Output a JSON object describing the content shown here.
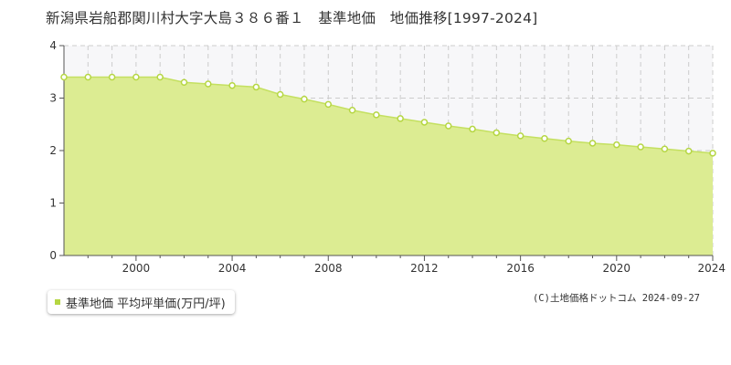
{
  "title": "新潟県岩船郡関川村大字大島３８６番１　基準地価　地価推移[1997-2024]",
  "legend": {
    "label": "基準地価 平均坪単価(万円/坪)"
  },
  "copyright": "(C)土地価格ドットコム 2024-09-27",
  "colors": {
    "area_fill": "#dcec92",
    "line": "#c4e060",
    "marker_stroke": "#b5d642",
    "marker_fill": "#ffffff",
    "grid": "#cccccc",
    "forecast_band": "#f7f7f9"
  },
  "chart_data": {
    "type": "area",
    "title": "",
    "xlabel": "",
    "ylabel": "",
    "xlim": [
      1997,
      2024
    ],
    "ylim": [
      0,
      4
    ],
    "xticks": [
      2000,
      2004,
      2008,
      2012,
      2016,
      2020,
      2024
    ],
    "yticks": [
      0,
      1,
      2,
      3,
      4
    ],
    "grid": true,
    "legend_position": "bottom-left",
    "series": [
      {
        "name": "基準地価 平均坪単価(万円/坪)",
        "x": [
          1997,
          1998,
          1999,
          2000,
          2001,
          2002,
          2003,
          2004,
          2005,
          2006,
          2007,
          2008,
          2009,
          2010,
          2011,
          2012,
          2013,
          2014,
          2015,
          2016,
          2017,
          2018,
          2019,
          2020,
          2021,
          2022,
          2023,
          2024
        ],
        "values": [
          3.4,
          3.4,
          3.4,
          3.4,
          3.4,
          3.3,
          3.27,
          3.24,
          3.21,
          3.07,
          2.98,
          2.88,
          2.77,
          2.68,
          2.61,
          2.54,
          2.47,
          2.41,
          2.34,
          2.28,
          2.23,
          2.18,
          2.14,
          2.11,
          2.07,
          2.03,
          1.99,
          1.95
        ]
      }
    ]
  }
}
